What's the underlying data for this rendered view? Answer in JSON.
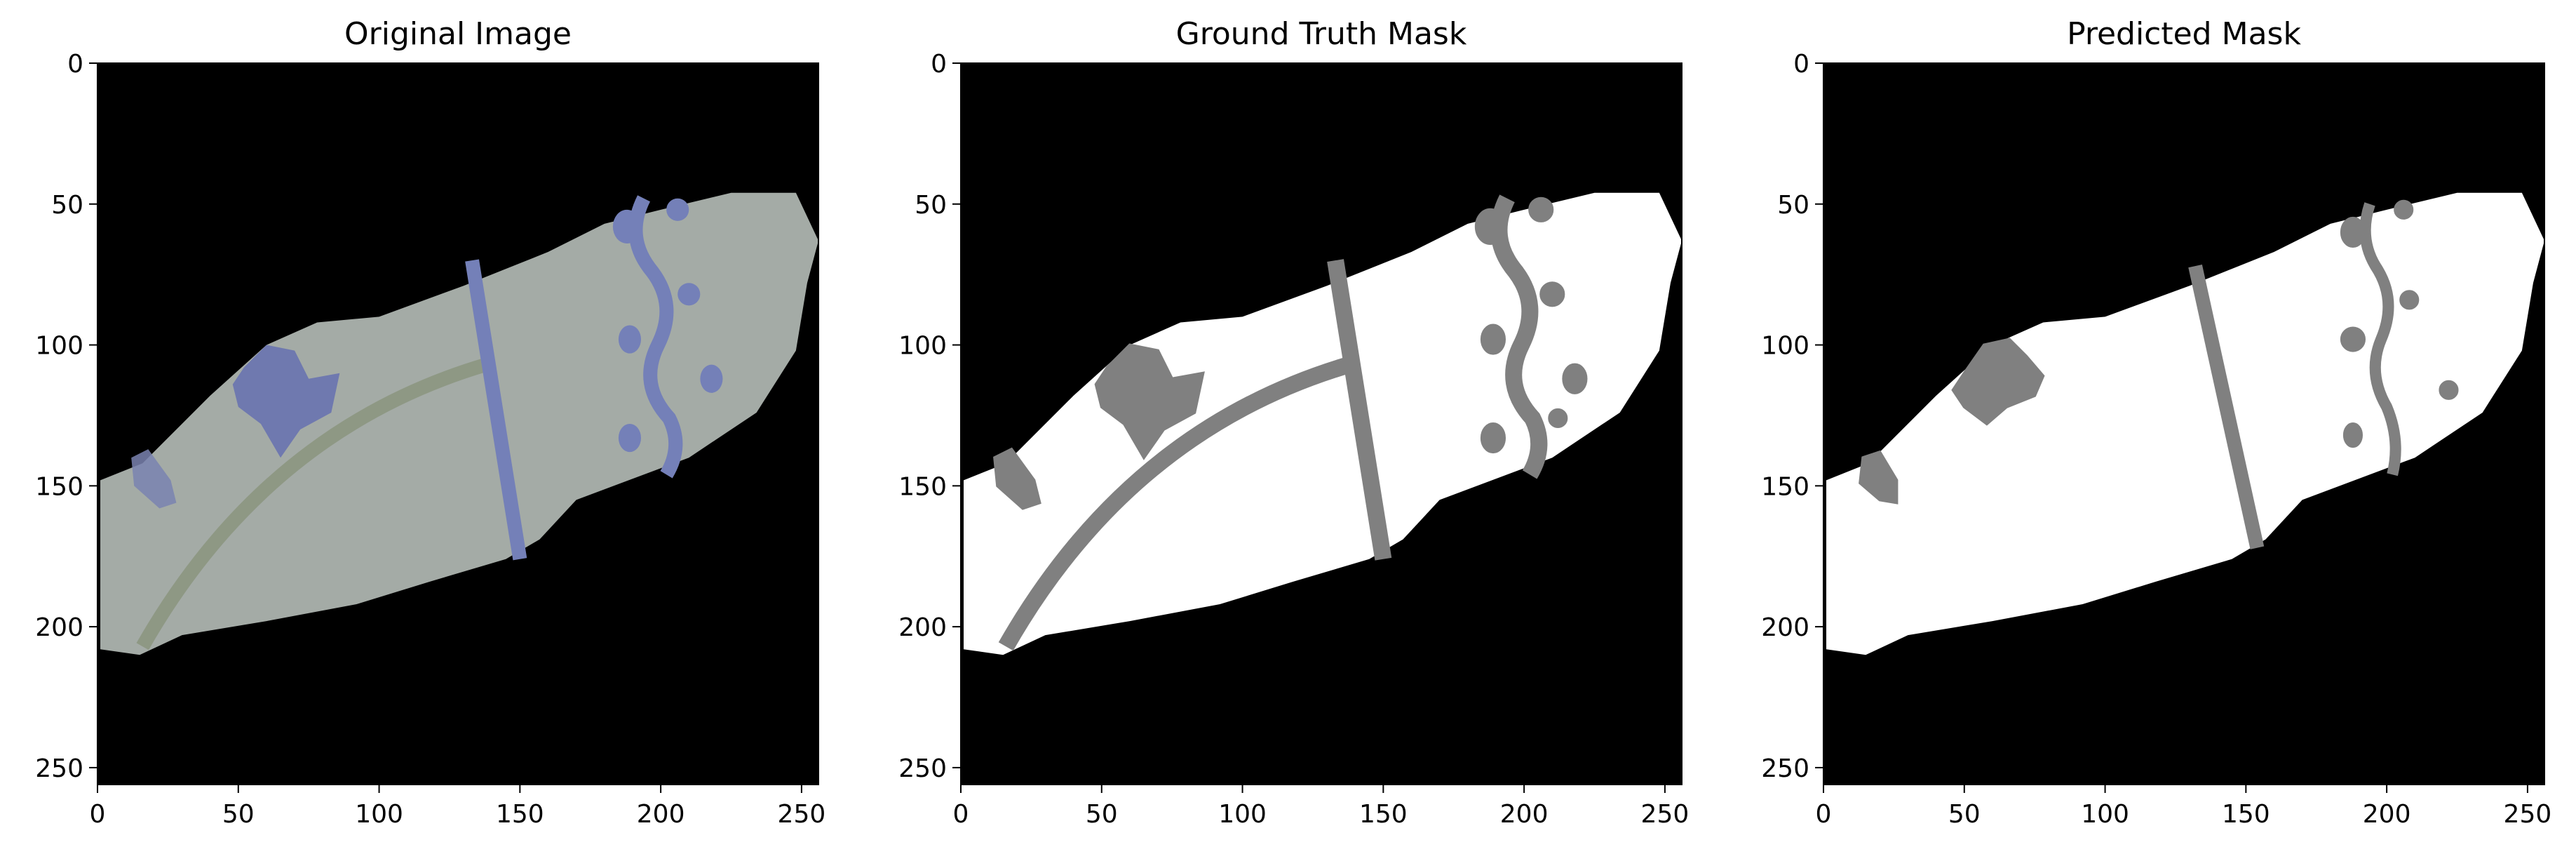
{
  "figure": {
    "panels": [
      {
        "id": "original",
        "title": "Original Image",
        "x_ticks": [
          "0",
          "50",
          "100",
          "150",
          "200",
          "250"
        ],
        "y_ticks": [
          "0",
          "50",
          "100",
          "150",
          "200",
          "250"
        ]
      },
      {
        "id": "ground_truth",
        "title": "Ground Truth Mask",
        "x_ticks": [
          "0",
          "50",
          "100",
          "150",
          "200",
          "250"
        ],
        "y_ticks": [
          "0",
          "50",
          "100",
          "150",
          "200",
          "250"
        ]
      },
      {
        "id": "predicted",
        "title": "Predicted Mask",
        "x_ticks": [
          "0",
          "50",
          "100",
          "150",
          "200",
          "250"
        ],
        "y_ticks": [
          "0",
          "50",
          "100",
          "150",
          "200",
          "250"
        ]
      }
    ],
    "colors": {
      "background": "#000000",
      "shard_fill": "#a4aba6",
      "shard_pattern_blue": "#7480b8",
      "shard_pattern_green": "#8e9884",
      "mask_foreground": "#ffffff",
      "mask_pattern": "#808080"
    }
  }
}
